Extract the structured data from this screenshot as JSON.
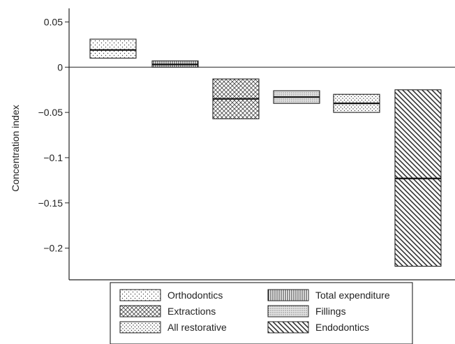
{
  "chart_data": {
    "type": "floating-bar",
    "ylabel": "Concentration index",
    "ylim": [
      -0.235,
      0.065
    ],
    "yticks": [
      {
        "value": 0.05,
        "label": "0.05"
      },
      {
        "value": 0,
        "label": "0"
      },
      {
        "value": -0.05,
        "label": "−0.05"
      },
      {
        "value": -0.1,
        "label": "−0.1"
      },
      {
        "value": -0.15,
        "label": "−0.15"
      },
      {
        "value": -0.2,
        "label": "−0.2"
      }
    ],
    "grid": false,
    "legend_position": "bottom",
    "series": [
      {
        "key": "orthodontics",
        "name": "Orthodontics",
        "lower": 0.01,
        "upper": 0.031,
        "estimate": 0.019,
        "pattern": "dots"
      },
      {
        "key": "total-expenditure",
        "name": "Total expenditure",
        "lower": 0.0,
        "upper": 0.007,
        "estimate": 0.003,
        "pattern": "vlines"
      },
      {
        "key": "extractions",
        "name": "Extractions",
        "lower": -0.057,
        "upper": -0.013,
        "estimate": -0.035,
        "pattern": "crosshatch"
      },
      {
        "key": "fillings",
        "name": "Fillings",
        "lower": -0.04,
        "upper": -0.026,
        "estimate": -0.033,
        "pattern": "finedots"
      },
      {
        "key": "all-restorative",
        "name": "All restorative",
        "lower": -0.05,
        "upper": -0.03,
        "estimate": -0.04,
        "pattern": "dots2"
      },
      {
        "key": "endodontics",
        "name": "Endodontics",
        "lower": -0.22,
        "upper": -0.025,
        "estimate": -0.123,
        "pattern": "diagonal"
      }
    ],
    "legend_order": [
      "orthodontics",
      "total-expenditure",
      "extractions",
      "fillings",
      "all-restorative",
      "endodontics"
    ]
  }
}
